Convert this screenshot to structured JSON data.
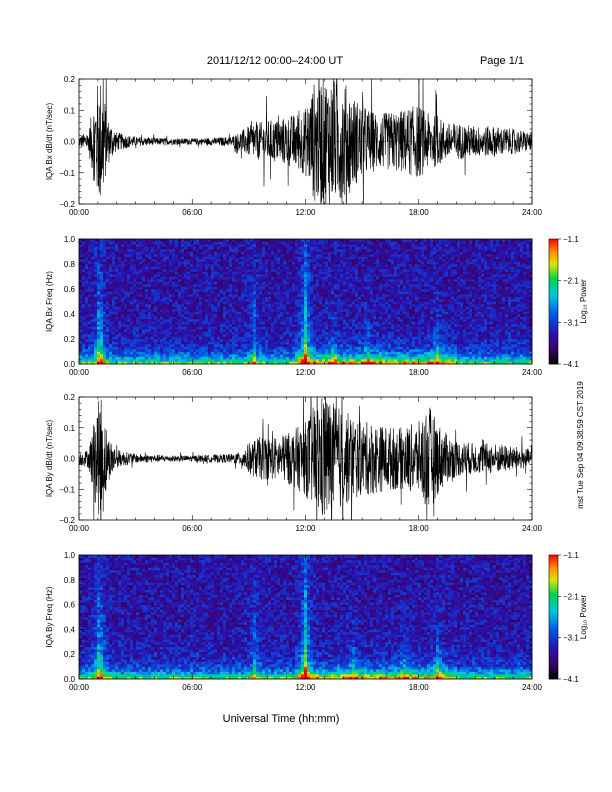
{
  "header": {
    "title": "2011/12/12  00:00–24:00 UT",
    "page": "Page 1/1"
  },
  "footer": {
    "xlabel": "Universal Time (hh:mm)",
    "side_stamp": "mst Tue Sep 04 09:38:59 CST 2019"
  },
  "chart_data": [
    {
      "type": "line",
      "name": "bx-waveform",
      "ylabel": "IQA Bx dB/dt (nT/sec)",
      "xlim": [
        0,
        24
      ],
      "ylim": [
        -0.2,
        0.2
      ],
      "yticks": [
        -0.2,
        -0.1,
        0.0,
        0.1,
        0.2
      ],
      "ytick_labels": [
        "−0.2",
        "−0.1",
        "0.0",
        "0.1",
        "0.2"
      ],
      "xticks": [
        0,
        6,
        12,
        18,
        24
      ],
      "xtick_labels": [
        "00:00",
        "06:00",
        "12:00",
        "18:00",
        "24:00"
      ],
      "envelope": {
        "x": [
          0.0,
          0.5,
          0.9,
          1.2,
          1.5,
          2.0,
          3.0,
          4.0,
          5.0,
          6.0,
          7.0,
          8.0,
          8.5,
          9.0,
          9.5,
          10.0,
          10.5,
          11.0,
          11.5,
          12.0,
          12.5,
          13.0,
          13.5,
          14.0,
          14.5,
          15.0,
          15.5,
          16.0,
          17.0,
          18.0,
          18.5,
          19.0,
          19.5,
          20.0,
          21.0,
          22.0,
          23.0,
          24.0
        ],
        "amp": [
          0.02,
          0.03,
          0.18,
          0.22,
          0.08,
          0.03,
          0.015,
          0.012,
          0.01,
          0.01,
          0.012,
          0.015,
          0.03,
          0.05,
          0.06,
          0.07,
          0.07,
          0.08,
          0.09,
          0.11,
          0.2,
          0.22,
          0.2,
          0.2,
          0.15,
          0.12,
          0.1,
          0.09,
          0.1,
          0.12,
          0.09,
          0.08,
          0.06,
          0.06,
          0.05,
          0.05,
          0.04,
          0.03
        ]
      }
    },
    {
      "type": "heatmap",
      "name": "bx-spectrogram",
      "ylabel": "IQA Bx Freq (Hz)",
      "xlim": [
        0,
        24
      ],
      "ylim": [
        0,
        1.0
      ],
      "yticks": [
        0.0,
        0.2,
        0.4,
        0.6,
        0.8,
        1.0
      ],
      "ytick_labels": [
        "0.0",
        "0.2",
        "0.4",
        "0.6",
        "0.8",
        "1.0"
      ],
      "xticks": [
        0,
        6,
        12,
        18,
        24
      ],
      "xtick_labels": [
        "00:00",
        "06:00",
        "12:00",
        "18:00",
        "24:00"
      ],
      "colorbar": {
        "label": "Log₁₀ Power",
        "range": [
          -4.1,
          -1.1
        ],
        "ticks": [
          -1.1,
          -2.1,
          -3.1,
          -4.1
        ],
        "tick_labels": [
          "−1.1",
          "−2.1",
          "−3.1",
          "−4.1"
        ]
      },
      "bursts": [
        {
          "t": 1.1,
          "strength": 1.0,
          "height": 0.55
        },
        {
          "t": 9.3,
          "strength": 0.5,
          "height": 0.6
        },
        {
          "t": 12.0,
          "strength": 0.9,
          "height": 0.8
        },
        {
          "t": 13.5,
          "strength": 0.55,
          "height": 0.25
        },
        {
          "t": 15.3,
          "strength": 0.4,
          "height": 0.35
        },
        {
          "t": 19.0,
          "strength": 0.5,
          "height": 0.3
        }
      ]
    },
    {
      "type": "line",
      "name": "by-waveform",
      "ylabel": "IQA By dB/dt (nT/sec)",
      "xlim": [
        0,
        24
      ],
      "ylim": [
        -0.2,
        0.2
      ],
      "yticks": [
        -0.2,
        -0.1,
        0.0,
        0.1,
        0.2
      ],
      "ytick_labels": [
        "−0.2",
        "−0.1",
        "0.0",
        "0.1",
        "0.2"
      ],
      "xticks": [
        0,
        6,
        12,
        18,
        24
      ],
      "xtick_labels": [
        "00:00",
        "06:00",
        "12:00",
        "18:00",
        "24:00"
      ],
      "envelope": {
        "x": [
          0.0,
          0.5,
          0.9,
          1.2,
          1.5,
          2.0,
          3.0,
          4.0,
          5.0,
          6.0,
          7.0,
          8.0,
          8.5,
          9.0,
          9.5,
          10.0,
          10.5,
          11.0,
          11.5,
          12.0,
          12.5,
          13.0,
          13.5,
          14.0,
          14.5,
          15.0,
          15.5,
          16.0,
          17.0,
          18.0,
          18.5,
          19.0,
          19.5,
          20.0,
          21.0,
          22.0,
          23.0,
          24.0
        ],
        "amp": [
          0.02,
          0.03,
          0.16,
          0.22,
          0.08,
          0.03,
          0.015,
          0.012,
          0.01,
          0.01,
          0.012,
          0.015,
          0.02,
          0.05,
          0.07,
          0.07,
          0.07,
          0.08,
          0.1,
          0.12,
          0.18,
          0.22,
          0.18,
          0.16,
          0.14,
          0.12,
          0.12,
          0.11,
          0.1,
          0.12,
          0.18,
          0.12,
          0.08,
          0.06,
          0.05,
          0.05,
          0.04,
          0.03
        ]
      }
    },
    {
      "type": "heatmap",
      "name": "by-spectrogram",
      "ylabel": "IQA By Freq (Hz)",
      "xlim": [
        0,
        24
      ],
      "ylim": [
        0,
        1.0
      ],
      "yticks": [
        0.0,
        0.2,
        0.4,
        0.6,
        0.8,
        1.0
      ],
      "ytick_labels": [
        "0.0",
        "0.2",
        "0.4",
        "0.6",
        "0.8",
        "1.0"
      ],
      "xticks": [
        0,
        6,
        12,
        18,
        24
      ],
      "xtick_labels": [
        "00:00",
        "06:00",
        "12:00",
        "18:00",
        "24:00"
      ],
      "colorbar": {
        "label": "Log₁₀ Power",
        "range": [
          -4.1,
          -1.1
        ],
        "ticks": [
          -1.1,
          -2.1,
          -3.1,
          -4.1
        ],
        "tick_labels": [
          "−1.1",
          "−2.1",
          "−3.1",
          "−4.1"
        ]
      },
      "bursts": [
        {
          "t": 1.1,
          "strength": 1.0,
          "height": 0.6
        },
        {
          "t": 9.3,
          "strength": 0.5,
          "height": 0.5
        },
        {
          "t": 12.0,
          "strength": 0.9,
          "height": 0.85
        },
        {
          "t": 14.5,
          "strength": 0.4,
          "height": 0.3
        },
        {
          "t": 17.2,
          "strength": 0.4,
          "height": 0.25
        },
        {
          "t": 19.0,
          "strength": 0.5,
          "height": 0.3
        }
      ]
    }
  ]
}
